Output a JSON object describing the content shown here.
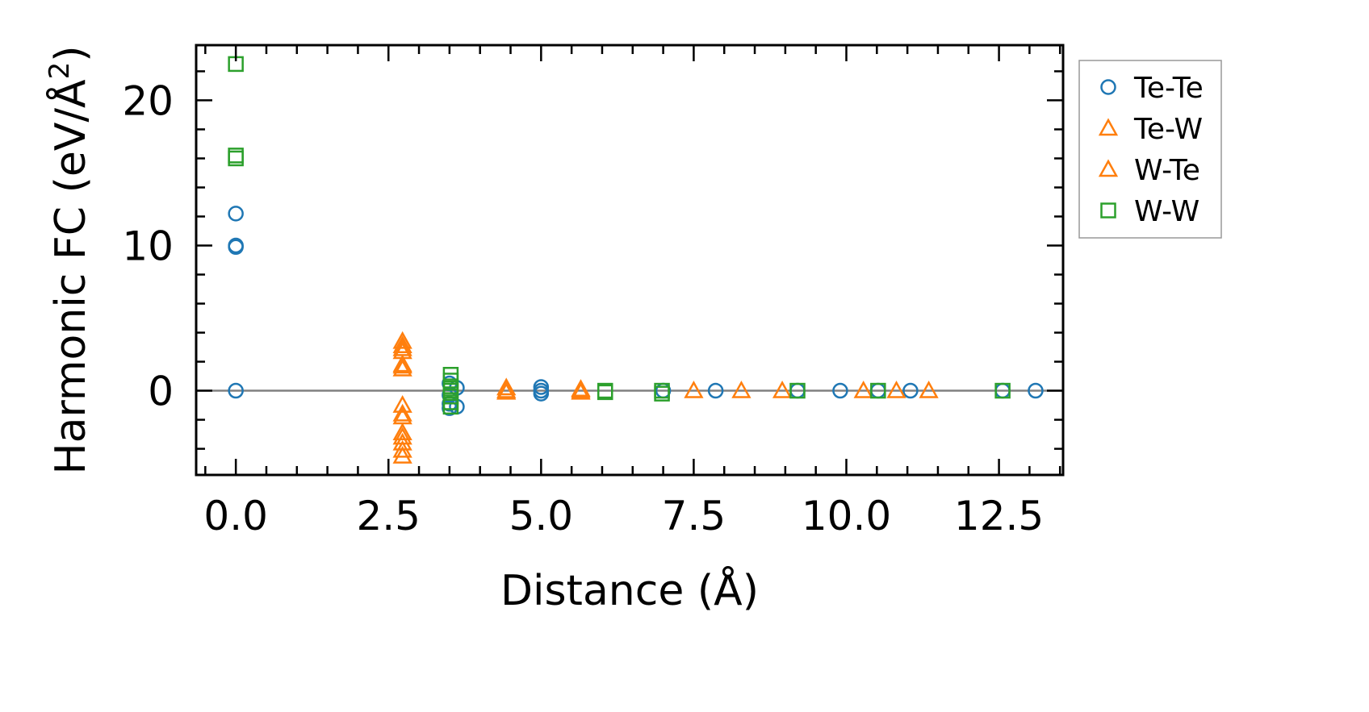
{
  "chart_data": {
    "type": "scatter",
    "xlabel": "Distance (Å)",
    "ylabel": "Harmonic FC (eV/Å",
    "ylabel_sup": "2",
    "ylabel_close": ")",
    "xlim": [
      -0.65,
      13.55
    ],
    "ylim": [
      -5.8,
      23.8
    ],
    "xticks": [
      0.0,
      2.5,
      5.0,
      7.5,
      10.0,
      12.5
    ],
    "xtick_labels": [
      "0.0",
      "2.5",
      "5.0",
      "7.5",
      "10.0",
      "12.5"
    ],
    "yticks": [
      0,
      10,
      20
    ],
    "ytick_labels": [
      "0",
      "10",
      "20"
    ],
    "grid": false,
    "zero_line": true,
    "legend_position": "outside-right-top",
    "series": [
      {
        "name": "Te-Te",
        "marker": "circle",
        "color": "#1f77b4",
        "points": [
          [
            0.0,
            12.2
          ],
          [
            0.0,
            10.0
          ],
          [
            0.0,
            9.9
          ],
          [
            0.0,
            0.0
          ],
          [
            3.5,
            0.5
          ],
          [
            3.5,
            -0.3
          ],
          [
            3.5,
            -0.9
          ],
          [
            3.5,
            -1.2
          ],
          [
            3.62,
            0.2
          ],
          [
            3.62,
            -1.1
          ],
          [
            5.0,
            0.25
          ],
          [
            5.0,
            0.0
          ],
          [
            5.0,
            -0.2
          ],
          [
            7.0,
            0.0
          ],
          [
            7.86,
            0.0
          ],
          [
            9.2,
            0.0
          ],
          [
            9.9,
            0.0
          ],
          [
            10.52,
            0.0
          ],
          [
            11.05,
            0.0
          ],
          [
            12.56,
            0.0
          ],
          [
            13.1,
            0.0
          ]
        ]
      },
      {
        "name": "Te-W",
        "marker": "triangle",
        "color": "#ff7f0e",
        "points": [
          [
            2.73,
            3.4
          ],
          [
            2.73,
            2.9
          ],
          [
            2.73,
            1.8
          ],
          [
            2.73,
            1.5
          ],
          [
            2.73,
            -1.0
          ],
          [
            2.73,
            -1.8
          ],
          [
            2.73,
            -3.2
          ],
          [
            2.73,
            -4.1
          ],
          [
            4.43,
            0.2
          ],
          [
            4.43,
            -0.1
          ],
          [
            5.65,
            0.1
          ],
          [
            5.65,
            -0.1
          ],
          [
            7.5,
            0.0
          ],
          [
            8.28,
            0.0
          ],
          [
            8.95,
            0.0
          ],
          [
            10.28,
            0.0
          ],
          [
            10.82,
            0.0
          ],
          [
            11.35,
            0.0
          ]
        ]
      },
      {
        "name": "W-Te",
        "marker": "triangle",
        "color": "#ff7f0e",
        "points": [
          [
            2.73,
            3.1
          ],
          [
            2.73,
            2.7
          ],
          [
            2.73,
            1.7
          ],
          [
            2.73,
            -1.6
          ],
          [
            2.73,
            -2.9
          ],
          [
            2.73,
            -3.6
          ],
          [
            2.73,
            -4.5
          ],
          [
            4.43,
            0.0
          ],
          [
            5.65,
            0.0
          ]
        ]
      },
      {
        "name": "W-W",
        "marker": "square",
        "color": "#2ca02c",
        "points": [
          [
            0.0,
            22.5
          ],
          [
            0.0,
            16.2
          ],
          [
            0.0,
            16.0
          ],
          [
            3.52,
            1.1
          ],
          [
            3.52,
            0.7
          ],
          [
            3.52,
            0.3
          ],
          [
            3.52,
            0.0
          ],
          [
            3.52,
            -0.4
          ],
          [
            3.52,
            -0.8
          ],
          [
            3.52,
            -1.1
          ],
          [
            6.05,
            0.0
          ],
          [
            6.05,
            -0.1
          ],
          [
            6.98,
            0.0
          ],
          [
            6.98,
            -0.2
          ],
          [
            9.2,
            0.0
          ],
          [
            10.52,
            0.0
          ],
          [
            12.56,
            0.0
          ]
        ]
      }
    ]
  }
}
